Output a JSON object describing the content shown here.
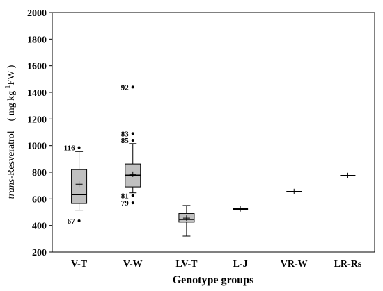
{
  "chart_data": {
    "type": "boxplot",
    "xlabel": "Genotype groups",
    "ylabel": {
      "italic": "trans",
      "text": "-Resveratrol　( mg kg",
      "sup": "-1",
      "after": "FW )"
    },
    "ylim": [
      200,
      2000
    ],
    "yticks": [
      "200",
      "400",
      "600",
      "800",
      "1000",
      "1200",
      "1400",
      "1600",
      "1800",
      "2000"
    ],
    "grid": false,
    "legend": "none",
    "colors": {
      "box_fill": "#c0c0c0",
      "line": "#000000",
      "background": "#ffffff"
    },
    "groups": [
      {
        "category": "V-T",
        "min": 515,
        "q1": 565,
        "median": 632,
        "q3": 820,
        "max": 955,
        "mean": 710,
        "outliers": [
          {
            "value": 985,
            "label": "116"
          },
          {
            "value": 435,
            "label": "67"
          }
        ]
      },
      {
        "category": "V-W",
        "min": 645,
        "q1": 690,
        "median": 778,
        "q3": 862,
        "max": 1015,
        "mean": 785,
        "outliers": [
          {
            "value": 1440,
            "label": "92"
          },
          {
            "value": 1090,
            "label": "83"
          },
          {
            "value": 1040,
            "label": "85"
          },
          {
            "value": 625,
            "label": "81"
          },
          {
            "value": 570,
            "label": "79"
          }
        ]
      },
      {
        "category": "LV-T",
        "min": 320,
        "q1": 425,
        "median": 445,
        "q3": 490,
        "max": 550,
        "mean": 455,
        "outliers": []
      },
      {
        "category": "L-J",
        "min": 522,
        "q1": 522,
        "median": 522,
        "q3": 528,
        "max": 528,
        "mean": 525,
        "outliers": []
      },
      {
        "category": "VR-W",
        "min": 655,
        "q1": 655,
        "median": 655,
        "q3": 655,
        "max": 655,
        "mean": 655,
        "outliers": []
      },
      {
        "category": "LR-Rs",
        "min": 775,
        "q1": 775,
        "median": 775,
        "q3": 775,
        "max": 775,
        "mean": 775,
        "outliers": []
      }
    ]
  }
}
